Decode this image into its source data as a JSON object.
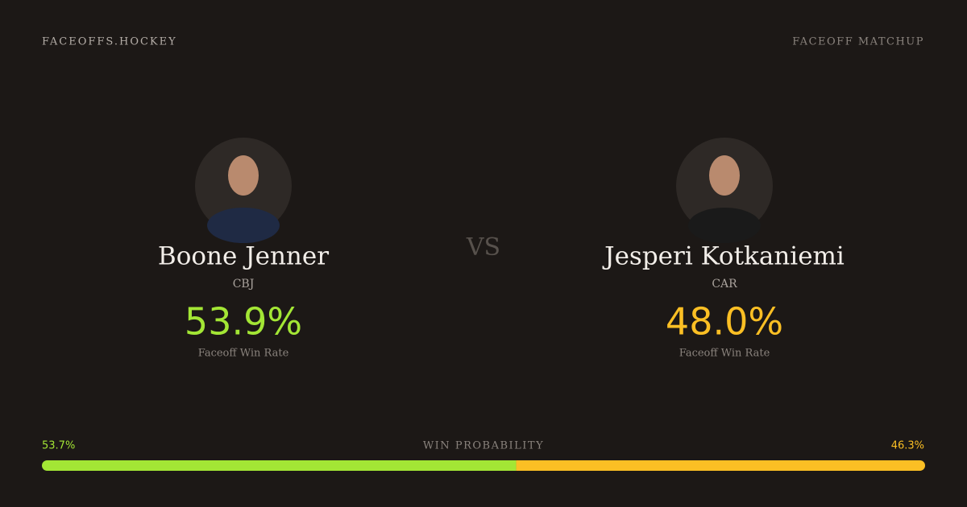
{
  "header": {
    "brand": "FACEOFFS.HOCKEY",
    "label": "FACEOFF MATCHUP"
  },
  "vs": "VS",
  "players": [
    {
      "name": "Boone Jenner",
      "team": "CBJ",
      "win_rate": "53.9%",
      "rate_label": "Faceoff Win Rate",
      "color": "#a3e635"
    },
    {
      "name": "Jesperi Kotkaniemi",
      "team": "CAR",
      "win_rate": "48.0%",
      "rate_label": "Faceoff Win Rate",
      "color": "#fbbf24"
    }
  ],
  "probability": {
    "label": "WIN PROBABILITY",
    "left": {
      "value": 53.7,
      "label": "53.7%"
    },
    "right": {
      "value": 46.3,
      "label": "46.3%"
    }
  }
}
